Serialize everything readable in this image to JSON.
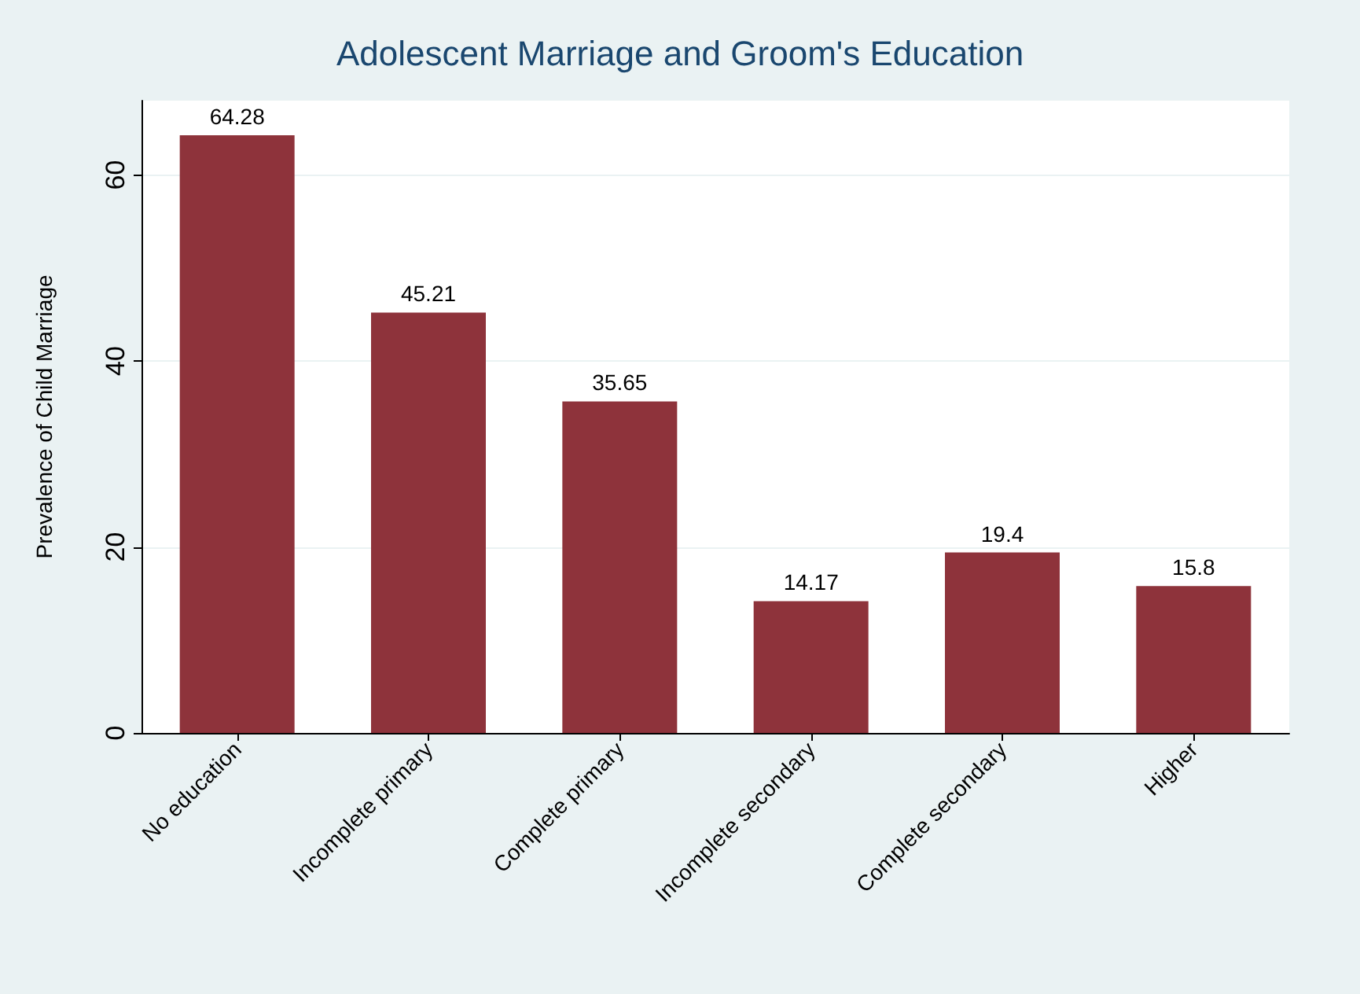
{
  "chart_data": {
    "type": "bar",
    "title": "Adolescent Marriage and Groom's Education",
    "ylabel": "Prevalence of Child Marriage",
    "categories": [
      "No education",
      "Incomplete primary",
      "Complete primary",
      "Incomplete secondary",
      "Complete secondary",
      "Higher"
    ],
    "values": [
      64.28,
      45.21,
      35.65,
      14.17,
      19.4,
      15.8
    ],
    "color": "#8e333b",
    "ylim": [
      0,
      68
    ],
    "yticks": [
      0,
      20,
      40,
      60
    ],
    "grid": "y",
    "data_labels": true
  }
}
